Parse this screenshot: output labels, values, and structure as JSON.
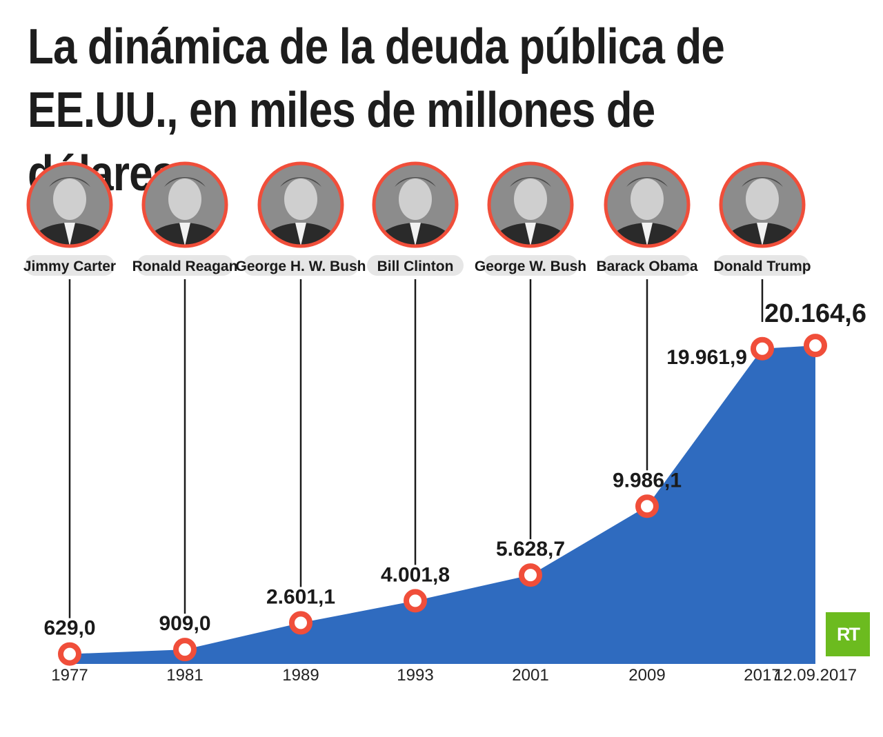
{
  "title": "La dinámica de la deuda pública de EE.UU., en miles de millones de dólares:",
  "logo_text": "RT",
  "colors": {
    "area": "#2f6bbf",
    "accent": "#f04e3a",
    "label_bg": "#e6e6e6"
  },
  "chart_data": {
    "type": "area",
    "title": "La dinámica de la deuda pública de EE.UU., en miles de millones de dólares:",
    "xlabel": "",
    "ylabel": "",
    "grid": false,
    "ylim": [
      0,
      21000
    ],
    "categories": [
      "1977",
      "1981",
      "1989",
      "1993",
      "2001",
      "2009",
      "2017",
      "12.09.2017"
    ],
    "values": [
      629.0,
      909.0,
      2601.1,
      4001.8,
      5628.7,
      9986.1,
      19961.9,
      20164.6
    ],
    "value_labels": [
      "629,0",
      "909,0",
      "2.601,1",
      "4.001,8",
      "5.628,7",
      "9.986,1",
      "19.961,9",
      "20.164,6"
    ],
    "annotations": [
      {
        "label": "Jimmy Carter",
        "category": "1977",
        "icon": "portrait-icon"
      },
      {
        "label": "Ronald Reagan",
        "category": "1981",
        "icon": "portrait-icon"
      },
      {
        "label": "George H. W. Bush",
        "category": "1989",
        "icon": "portrait-icon"
      },
      {
        "label": "Bill Clinton",
        "category": "1993",
        "icon": "portrait-icon"
      },
      {
        "label": "George W. Bush",
        "category": "2001",
        "icon": "portrait-icon"
      },
      {
        "label": "Barack Obama",
        "category": "2009",
        "icon": "portrait-icon"
      },
      {
        "label": "Donald Trump",
        "category": "2017",
        "icon": "portrait-icon"
      }
    ]
  }
}
